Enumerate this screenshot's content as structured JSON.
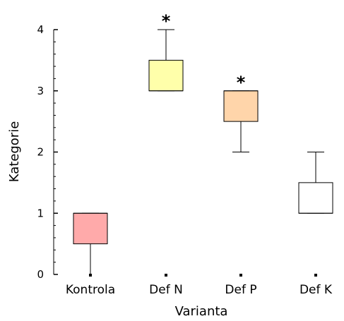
{
  "chart_data": {
    "type": "boxplot",
    "title": "",
    "xlabel": "Varianta",
    "ylabel": "Kategorie",
    "ylim": [
      0,
      4
    ],
    "yticks": [
      "0",
      "1",
      "2",
      "3",
      "4"
    ],
    "categories": [
      "Kontrola",
      "Def N",
      "Def P",
      "Def K"
    ],
    "boxes": [
      {
        "name": "Kontrola",
        "min": 0,
        "q1": 0.5,
        "median": 1,
        "q3": 1,
        "max": 1,
        "color": "#ffaaaa",
        "significance": ""
      },
      {
        "name": "Def N",
        "min": 3,
        "q1": 3,
        "median": 3,
        "q3": 3.5,
        "max": 4,
        "color": "#ffffaa",
        "significance": "*"
      },
      {
        "name": "Def P",
        "min": 2,
        "q1": 2.5,
        "median": 3,
        "q3": 3,
        "max": 3,
        "color": "#ffd5aa",
        "significance": "*"
      },
      {
        "name": "Def K",
        "min": 1,
        "q1": 1,
        "median": 1,
        "q3": 1.5,
        "max": 2,
        "color": "#ffffff",
        "significance": ""
      }
    ],
    "grid": false,
    "legend": "none"
  }
}
